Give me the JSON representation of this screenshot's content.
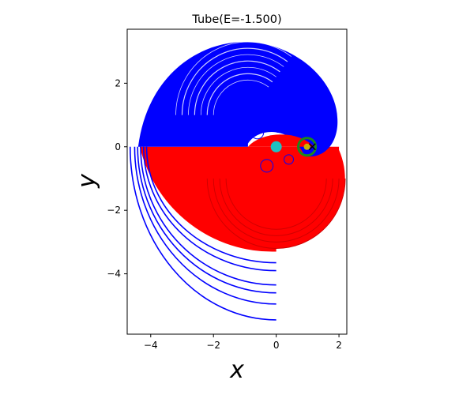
{
  "chart_data": {
    "type": "line",
    "title": "Tube(E=-1.500)",
    "xlabel": "x",
    "ylabel": "y",
    "xlim": [
      -4.75,
      2.25
    ],
    "ylim": [
      -5.9,
      3.7
    ],
    "grid": false,
    "x_ticks": [
      {
        "value": -4,
        "label": "−4"
      },
      {
        "value": -2,
        "label": "−2"
      },
      {
        "value": 0,
        "label": "0"
      },
      {
        "value": 2,
        "label": "2"
      }
    ],
    "y_ticks": [
      {
        "value": 2,
        "label": "2"
      },
      {
        "value": 0,
        "label": "0"
      },
      {
        "value": -2,
        "label": "−2"
      },
      {
        "value": -4,
        "label": "−4"
      }
    ],
    "colors": {
      "upper_orbit": "#0000ff",
      "lower_orbit": "#ff0000",
      "large_body": "#1fc2c2",
      "small_body": "#c8b400",
      "small_body_ring": "#1a8a1a",
      "lagrange_marker": "#000000"
    },
    "series": [
      {
        "name": "",
        "color": "#0000ff",
        "arcs_upper": [
          {
            "cx": -0.9,
            "cy": 1.0,
            "r": 2.3
          },
          {
            "cx": -0.9,
            "cy": 1.0,
            "r": 2.1
          },
          {
            "cx": -0.9,
            "cy": 1.0,
            "r": 1.9
          },
          {
            "cx": -0.9,
            "cy": 1.0,
            "r": 1.7
          },
          {
            "cx": -0.9,
            "cy": 1.0,
            "r": 1.5
          },
          {
            "cx": -0.9,
            "cy": 1.0,
            "r": 1.3
          },
          {
            "cx": -0.9,
            "cy": 1.0,
            "r": 1.1
          }
        ],
        "arcs_lower_outer": [
          {
            "cx": 0.0,
            "cy": 0.0,
            "r": 4.35,
            "y_end": -3.65
          },
          {
            "cx": 0.0,
            "cy": 0.0,
            "r": 4.45,
            "y_end": -3.9
          },
          {
            "cx": 0.0,
            "cy": 0.0,
            "r": 4.55,
            "y_end": -4.35
          },
          {
            "cx": 0.0,
            "cy": 0.0,
            "r": 4.65,
            "y_end": -4.6
          },
          {
            "cx": 0.0,
            "cy": 0.0,
            "r": 4.75,
            "y_end": -4.95
          },
          {
            "cx": 0.0,
            "cy": 0.0,
            "r": 4.9,
            "y_end": -5.45
          }
        ]
      },
      {
        "name": "",
        "color": "#ff0000",
        "arcs_lower": [
          {
            "cx": 0.0,
            "cy": -1.0,
            "r": 2.2
          },
          {
            "cx": 0.0,
            "cy": -1.0,
            "r": 2.0
          },
          {
            "cx": 0.0,
            "cy": -1.0,
            "r": 1.8
          },
          {
            "cx": 0.0,
            "cy": -1.0,
            "r": 1.6
          }
        ]
      }
    ],
    "points": [
      {
        "name": "large-body",
        "x": 0.0,
        "y": 0.0
      },
      {
        "name": "small-body",
        "x": 0.98,
        "y": 0.0
      },
      {
        "name": "lagrange-point",
        "x": 1.15,
        "y": 0.0
      }
    ]
  }
}
